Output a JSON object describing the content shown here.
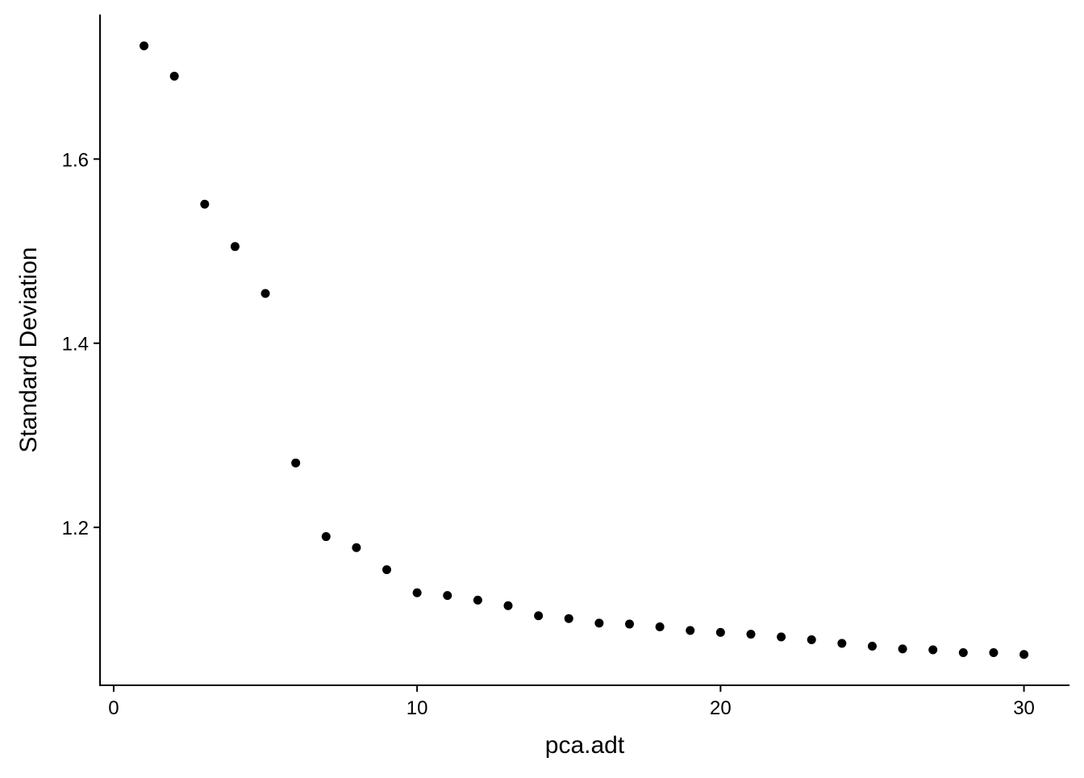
{
  "chart_data": {
    "type": "scatter",
    "title": "",
    "xlabel": "pca.adt",
    "ylabel": "Standard Deviation",
    "xlim": [
      -0.45,
      31.5
    ],
    "ylim": [
      1.0285,
      1.757
    ],
    "xticks": [
      0,
      10,
      20,
      30
    ],
    "xtick_labels": [
      "0",
      "10",
      "20",
      "30"
    ],
    "yticks": [
      1.2,
      1.4,
      1.6
    ],
    "ytick_labels": [
      "1.2",
      "1.4",
      "1.6"
    ],
    "grid": false,
    "point_color": "#000000",
    "x": [
      1,
      2,
      3,
      4,
      5,
      6,
      7,
      8,
      9,
      10,
      11,
      12,
      13,
      14,
      15,
      16,
      17,
      18,
      19,
      20,
      21,
      22,
      23,
      24,
      25,
      26,
      27,
      28,
      29,
      30
    ],
    "y": [
      1.723,
      1.69,
      1.551,
      1.505,
      1.454,
      1.27,
      1.19,
      1.178,
      1.154,
      1.129,
      1.126,
      1.121,
      1.115,
      1.104,
      1.101,
      1.096,
      1.095,
      1.092,
      1.088,
      1.086,
      1.084,
      1.081,
      1.078,
      1.074,
      1.071,
      1.068,
      1.067,
      1.064,
      1.064,
      1.062
    ]
  }
}
